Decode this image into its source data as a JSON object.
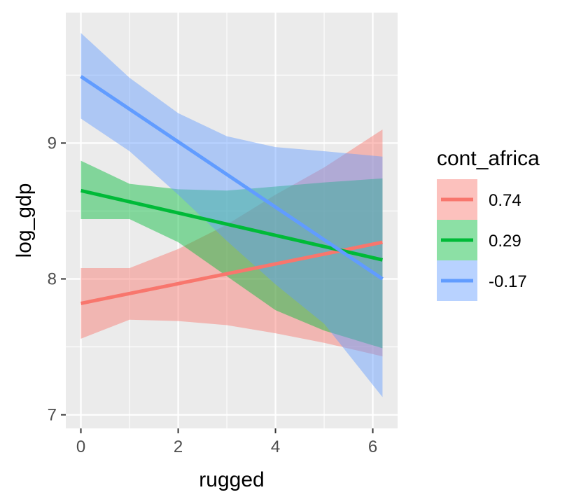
{
  "chart_data": {
    "type": "line",
    "xlabel": "rugged",
    "ylabel": "log_gdp",
    "xlim": [
      -0.31,
      6.51
    ],
    "ylim": [
      6.9,
      9.96
    ],
    "x_ticks": [
      0,
      2,
      4,
      6
    ],
    "x_tick_labels": [
      "0",
      "2",
      "4",
      "6"
    ],
    "y_ticks": [
      7,
      8,
      9
    ],
    "y_tick_labels": [
      "7",
      "8",
      "9"
    ],
    "grid": true,
    "legend": {
      "title": "cont_africa",
      "position": "right"
    },
    "series": [
      {
        "name": "0.74",
        "color": "#F8766D",
        "x": [
          0,
          6.2
        ],
        "y": [
          7.82,
          8.27
        ],
        "ribbon": {
          "x": [
            0,
            1,
            2,
            3,
            4,
            5,
            6.2
          ],
          "lower": [
            7.56,
            7.7,
            7.69,
            7.66,
            7.6,
            7.53,
            7.43
          ],
          "upper": [
            8.08,
            8.08,
            8.22,
            8.4,
            8.62,
            8.82,
            9.1
          ]
        }
      },
      {
        "name": "0.29",
        "color": "#00BA38",
        "x": [
          0,
          6.2
        ],
        "y": [
          8.65,
          8.14
        ],
        "ribbon": {
          "x": [
            0,
            1,
            2,
            3,
            4,
            5,
            6.2
          ],
          "lower": [
            8.44,
            8.44,
            8.27,
            8.02,
            7.77,
            7.62,
            7.49
          ],
          "upper": [
            8.87,
            8.7,
            8.66,
            8.65,
            8.68,
            8.71,
            8.74
          ]
        }
      },
      {
        "name": "-0.17",
        "color": "#619CFF",
        "x": [
          0,
          6.2
        ],
        "y": [
          9.49,
          8.0
        ],
        "ribbon": {
          "x": [
            0,
            1,
            2,
            3,
            4,
            5,
            6.2
          ],
          "lower": [
            9.18,
            8.94,
            8.62,
            8.28,
            7.96,
            7.67,
            7.13
          ],
          "upper": [
            9.81,
            9.48,
            9.22,
            9.05,
            8.97,
            8.94,
            8.9
          ]
        }
      }
    ]
  }
}
